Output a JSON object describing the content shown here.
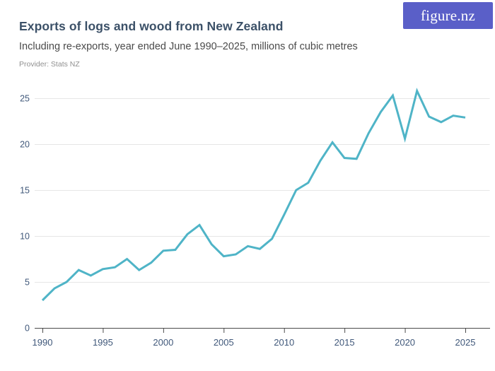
{
  "header": {
    "title": "Exports of logs and wood from New Zealand",
    "subtitle": "Including re-exports, year ended June 1990–2025, millions of cubic metres",
    "provider": "Provider: Stats NZ",
    "logo_text": "figure.nz"
  },
  "colors": {
    "title": "#3c5168",
    "subtitle": "#4a4a4a",
    "provider": "#909090",
    "logo_bg": "#5a5fc8",
    "logo_text": "#ffffff",
    "line": "#4fb4c7",
    "gridline": "#e6e6e6",
    "axis_line": "#4a4a4a",
    "axis_label": "#40587a"
  },
  "chart_data": {
    "type": "line",
    "title": "Exports of logs and wood from New Zealand",
    "subtitle": "Including re-exports, year ended June 1990–2025, millions of cubic metres",
    "xlabel": "Year ended June",
    "ylabel": "Millions of cubic metres",
    "ylim": [
      0,
      26
    ],
    "yticks": [
      0,
      5,
      10,
      15,
      20,
      25
    ],
    "xticks": [
      1990,
      1995,
      2000,
      2005,
      2010,
      2015,
      2020,
      2025
    ],
    "grid": "horizontal",
    "legend": "none",
    "x": [
      1990,
      1991,
      1992,
      1993,
      1994,
      1995,
      1996,
      1997,
      1998,
      1999,
      2000,
      2001,
      2002,
      2003,
      2004,
      2005,
      2006,
      2007,
      2008,
      2009,
      2010,
      2011,
      2012,
      2013,
      2014,
      2015,
      2016,
      2017,
      2018,
      2019,
      2020,
      2021,
      2022,
      2023,
      2024,
      2025
    ],
    "values": [
      3.0,
      4.3,
      5.0,
      6.3,
      5.7,
      6.4,
      6.6,
      7.5,
      6.3,
      7.1,
      8.4,
      8.5,
      10.2,
      11.2,
      9.1,
      7.8,
      8.0,
      8.9,
      8.6,
      9.7,
      12.3,
      15.0,
      15.8,
      18.2,
      20.2,
      18.5,
      18.4,
      21.2,
      23.5,
      25.3,
      20.6,
      25.8,
      23.0,
      22.4,
      23.1,
      22.9
    ]
  }
}
